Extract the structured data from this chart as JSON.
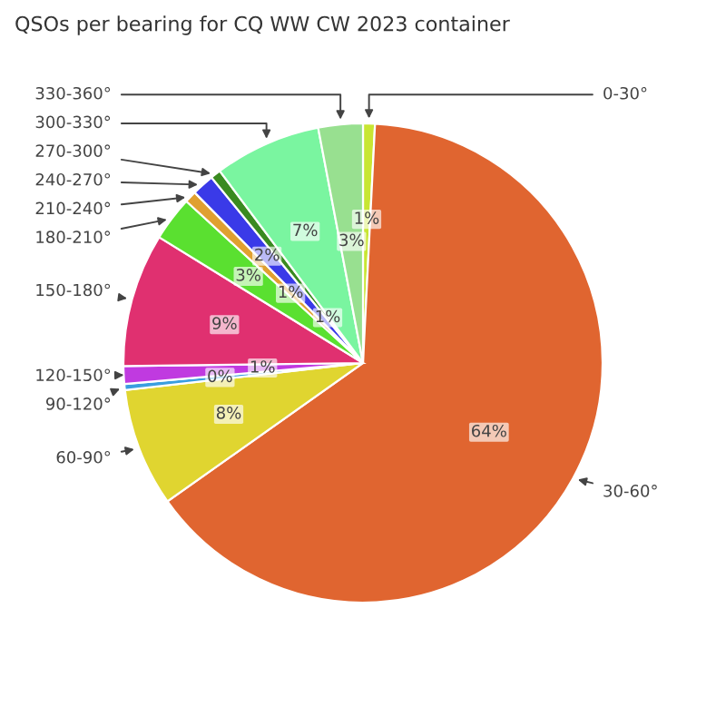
{
  "chart_data": {
    "type": "pie",
    "title": "QSOs per bearing for CQ WW CW 2023 container",
    "categories": [
      "0-30°",
      "30-60°",
      "60-90°",
      "90-120°",
      "120-150°",
      "150-180°",
      "180-210°",
      "210-240°",
      "240-270°",
      "270-300°",
      "300-330°",
      "330-360°"
    ],
    "values": [
      0.8,
      64.4,
      8,
      0.4,
      1.2,
      9,
      3,
      0.8,
      1.5,
      0.7,
      7.2,
      3
    ],
    "value_labels": [
      "1%",
      "64%",
      "8%",
      "0%",
      "1%",
      "9%",
      "3%",
      "1%",
      "2%",
      "1%",
      "7%",
      "3%"
    ],
    "colors": [
      "#c8e632",
      "#e06530",
      "#e0d530",
      "#3a9ee0",
      "#c03ae0",
      "#e03070",
      "#5ae030",
      "#e0a030",
      "#3a3ae8",
      "#3a8a20",
      "#7af5a0",
      "#98e090"
    ],
    "legend": false
  }
}
